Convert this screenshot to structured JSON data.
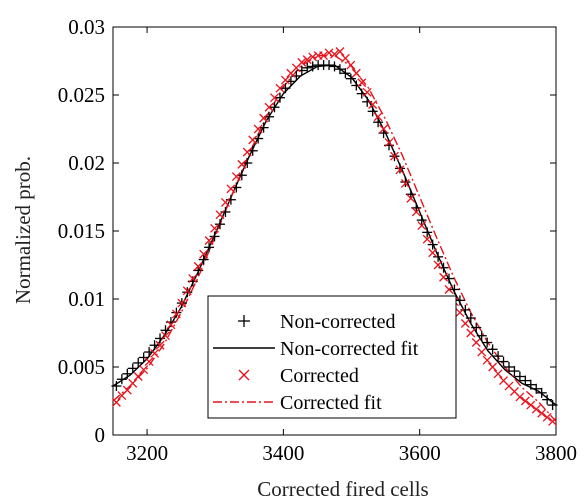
{
  "chart_data": {
    "type": "scatter",
    "title": "",
    "xlabel": "Corrected fired cells",
    "ylabel": "Normalized prob.",
    "xlim": [
      3150,
      3800
    ],
    "ylim": [
      0,
      0.03
    ],
    "xticks": [
      3200,
      3400,
      3600,
      3800
    ],
    "yticks": [
      0,
      0.005,
      0.01,
      0.015,
      0.02,
      0.025,
      0.03
    ],
    "ytick_labels": [
      "0",
      "0.005",
      "0.01",
      "0.015",
      "0.02",
      "0.025",
      "0.03"
    ],
    "grid": false,
    "legend_position": "bottom-center",
    "series": [
      {
        "name": "Non-corrected",
        "kind": "markers",
        "marker": "plus",
        "color": "#000000",
        "x": [
          3155,
          3163,
          3171,
          3179,
          3187,
          3195,
          3203,
          3211,
          3219,
          3227,
          3235,
          3243,
          3251,
          3259,
          3267,
          3275,
          3283,
          3291,
          3299,
          3307,
          3315,
          3323,
          3331,
          3339,
          3347,
          3355,
          3363,
          3371,
          3379,
          3387,
          3395,
          3403,
          3411,
          3419,
          3427,
          3435,
          3443,
          3451,
          3459,
          3467,
          3475,
          3483,
          3491,
          3499,
          3507,
          3515,
          3523,
          3531,
          3539,
          3547,
          3555,
          3563,
          3571,
          3579,
          3587,
          3595,
          3603,
          3611,
          3619,
          3627,
          3635,
          3643,
          3651,
          3659,
          3667,
          3675,
          3683,
          3691,
          3699,
          3707,
          3715,
          3723,
          3731,
          3739,
          3747,
          3755,
          3763,
          3771,
          3779,
          3787,
          3795
        ],
        "y": [
          0.0036,
          0.0041,
          0.0045,
          0.0049,
          0.0053,
          0.0057,
          0.0061,
          0.0066,
          0.0071,
          0.0077,
          0.0083,
          0.009,
          0.0097,
          0.0105,
          0.0113,
          0.0121,
          0.0129,
          0.0138,
          0.0146,
          0.0155,
          0.0164,
          0.0173,
          0.0182,
          0.0191,
          0.02,
          0.0209,
          0.0218,
          0.0226,
          0.0234,
          0.0241,
          0.0248,
          0.0255,
          0.026,
          0.0264,
          0.0268,
          0.027,
          0.0271,
          0.0272,
          0.0272,
          0.0272,
          0.0271,
          0.0269,
          0.0266,
          0.0262,
          0.0257,
          0.0251,
          0.0245,
          0.0238,
          0.023,
          0.0222,
          0.0213,
          0.0205,
          0.0196,
          0.0186,
          0.0177,
          0.0167,
          0.0158,
          0.0149,
          0.014,
          0.0131,
          0.0123,
          0.0115,
          0.0107,
          0.0099,
          0.0092,
          0.0086,
          0.0079,
          0.0073,
          0.0068,
          0.0063,
          0.0058,
          0.0054,
          0.005,
          0.0047,
          0.0043,
          0.004,
          0.0037,
          0.0034,
          0.0031,
          0.0026,
          0.0022
        ]
      },
      {
        "name": "Non-corrected fit",
        "kind": "line",
        "dash": "solid",
        "color": "#000000",
        "x": [
          3150,
          3175,
          3200,
          3225,
          3250,
          3275,
          3300,
          3325,
          3350,
          3375,
          3400,
          3425,
          3450,
          3475,
          3500,
          3525,
          3550,
          3575,
          3600,
          3625,
          3650,
          3675,
          3700,
          3725,
          3750,
          3775,
          3800
        ],
        "y": [
          0.0036,
          0.0044,
          0.0056,
          0.0073,
          0.0094,
          0.012,
          0.0148,
          0.0177,
          0.0205,
          0.0231,
          0.0251,
          0.0264,
          0.0271,
          0.0272,
          0.0263,
          0.0246,
          0.0222,
          0.0194,
          0.0164,
          0.0134,
          0.0106,
          0.0082,
          0.0062,
          0.0048,
          0.0038,
          0.0032,
          0.0022
        ]
      },
      {
        "name": "Corrected",
        "kind": "markers",
        "marker": "cross",
        "color": "#e8121c",
        "x": [
          3155,
          3163,
          3171,
          3179,
          3187,
          3195,
          3203,
          3211,
          3219,
          3227,
          3235,
          3243,
          3251,
          3259,
          3267,
          3275,
          3283,
          3291,
          3299,
          3307,
          3315,
          3323,
          3331,
          3339,
          3347,
          3355,
          3363,
          3371,
          3379,
          3387,
          3395,
          3403,
          3411,
          3419,
          3427,
          3435,
          3443,
          3451,
          3459,
          3467,
          3475,
          3483,
          3491,
          3499,
          3507,
          3515,
          3523,
          3531,
          3539,
          3547,
          3555,
          3563,
          3571,
          3579,
          3587,
          3595,
          3603,
          3611,
          3619,
          3627,
          3635,
          3643,
          3651,
          3659,
          3667,
          3675,
          3683,
          3691,
          3699,
          3707,
          3715,
          3723,
          3731,
          3739,
          3747,
          3755,
          3763,
          3771,
          3779,
          3787,
          3795
        ],
        "y": [
          0.0024,
          0.0029,
          0.0033,
          0.0038,
          0.0043,
          0.0048,
          0.0054,
          0.006,
          0.0066,
          0.0073,
          0.0081,
          0.0089,
          0.0097,
          0.0106,
          0.0115,
          0.0124,
          0.0133,
          0.0143,
          0.0152,
          0.0162,
          0.0171,
          0.0181,
          0.019,
          0.0199,
          0.0208,
          0.0217,
          0.0225,
          0.0233,
          0.0241,
          0.0248,
          0.0255,
          0.0261,
          0.0266,
          0.027,
          0.0274,
          0.0276,
          0.0278,
          0.0279,
          0.0279,
          0.0281,
          0.028,
          0.0282,
          0.0277,
          0.0272,
          0.0266,
          0.0259,
          0.0252,
          0.0243,
          0.0234,
          0.0225,
          0.0215,
          0.0205,
          0.0195,
          0.0185,
          0.0174,
          0.0164,
          0.0154,
          0.0144,
          0.0134,
          0.0125,
          0.0116,
          0.0107,
          0.0098,
          0.009,
          0.0082,
          0.0075,
          0.0068,
          0.0061,
          0.0055,
          0.005,
          0.0045,
          0.004,
          0.0036,
          0.0032,
          0.0028,
          0.0025,
          0.0022,
          0.0019,
          0.0016,
          0.0013,
          0.001
        ]
      },
      {
        "name": "Corrected fit",
        "kind": "line",
        "dash": "dashdot",
        "color": "#e8121c",
        "x": [
          3150,
          3175,
          3200,
          3225,
          3250,
          3275,
          3300,
          3325,
          3350,
          3375,
          3400,
          3425,
          3450,
          3475,
          3500,
          3525,
          3550,
          3575,
          3600,
          3625,
          3650,
          3675,
          3700,
          3725,
          3750,
          3775,
          3800
        ],
        "y": [
          0.0025,
          0.0036,
          0.0049,
          0.0067,
          0.009,
          0.0116,
          0.0146,
          0.0177,
          0.0207,
          0.0234,
          0.0256,
          0.0271,
          0.0279,
          0.0279,
          0.0271,
          0.0255,
          0.0232,
          0.0205,
          0.0175,
          0.0145,
          0.0116,
          0.009,
          0.0068,
          0.005,
          0.0035,
          0.0024,
          0.001
        ]
      }
    ]
  }
}
